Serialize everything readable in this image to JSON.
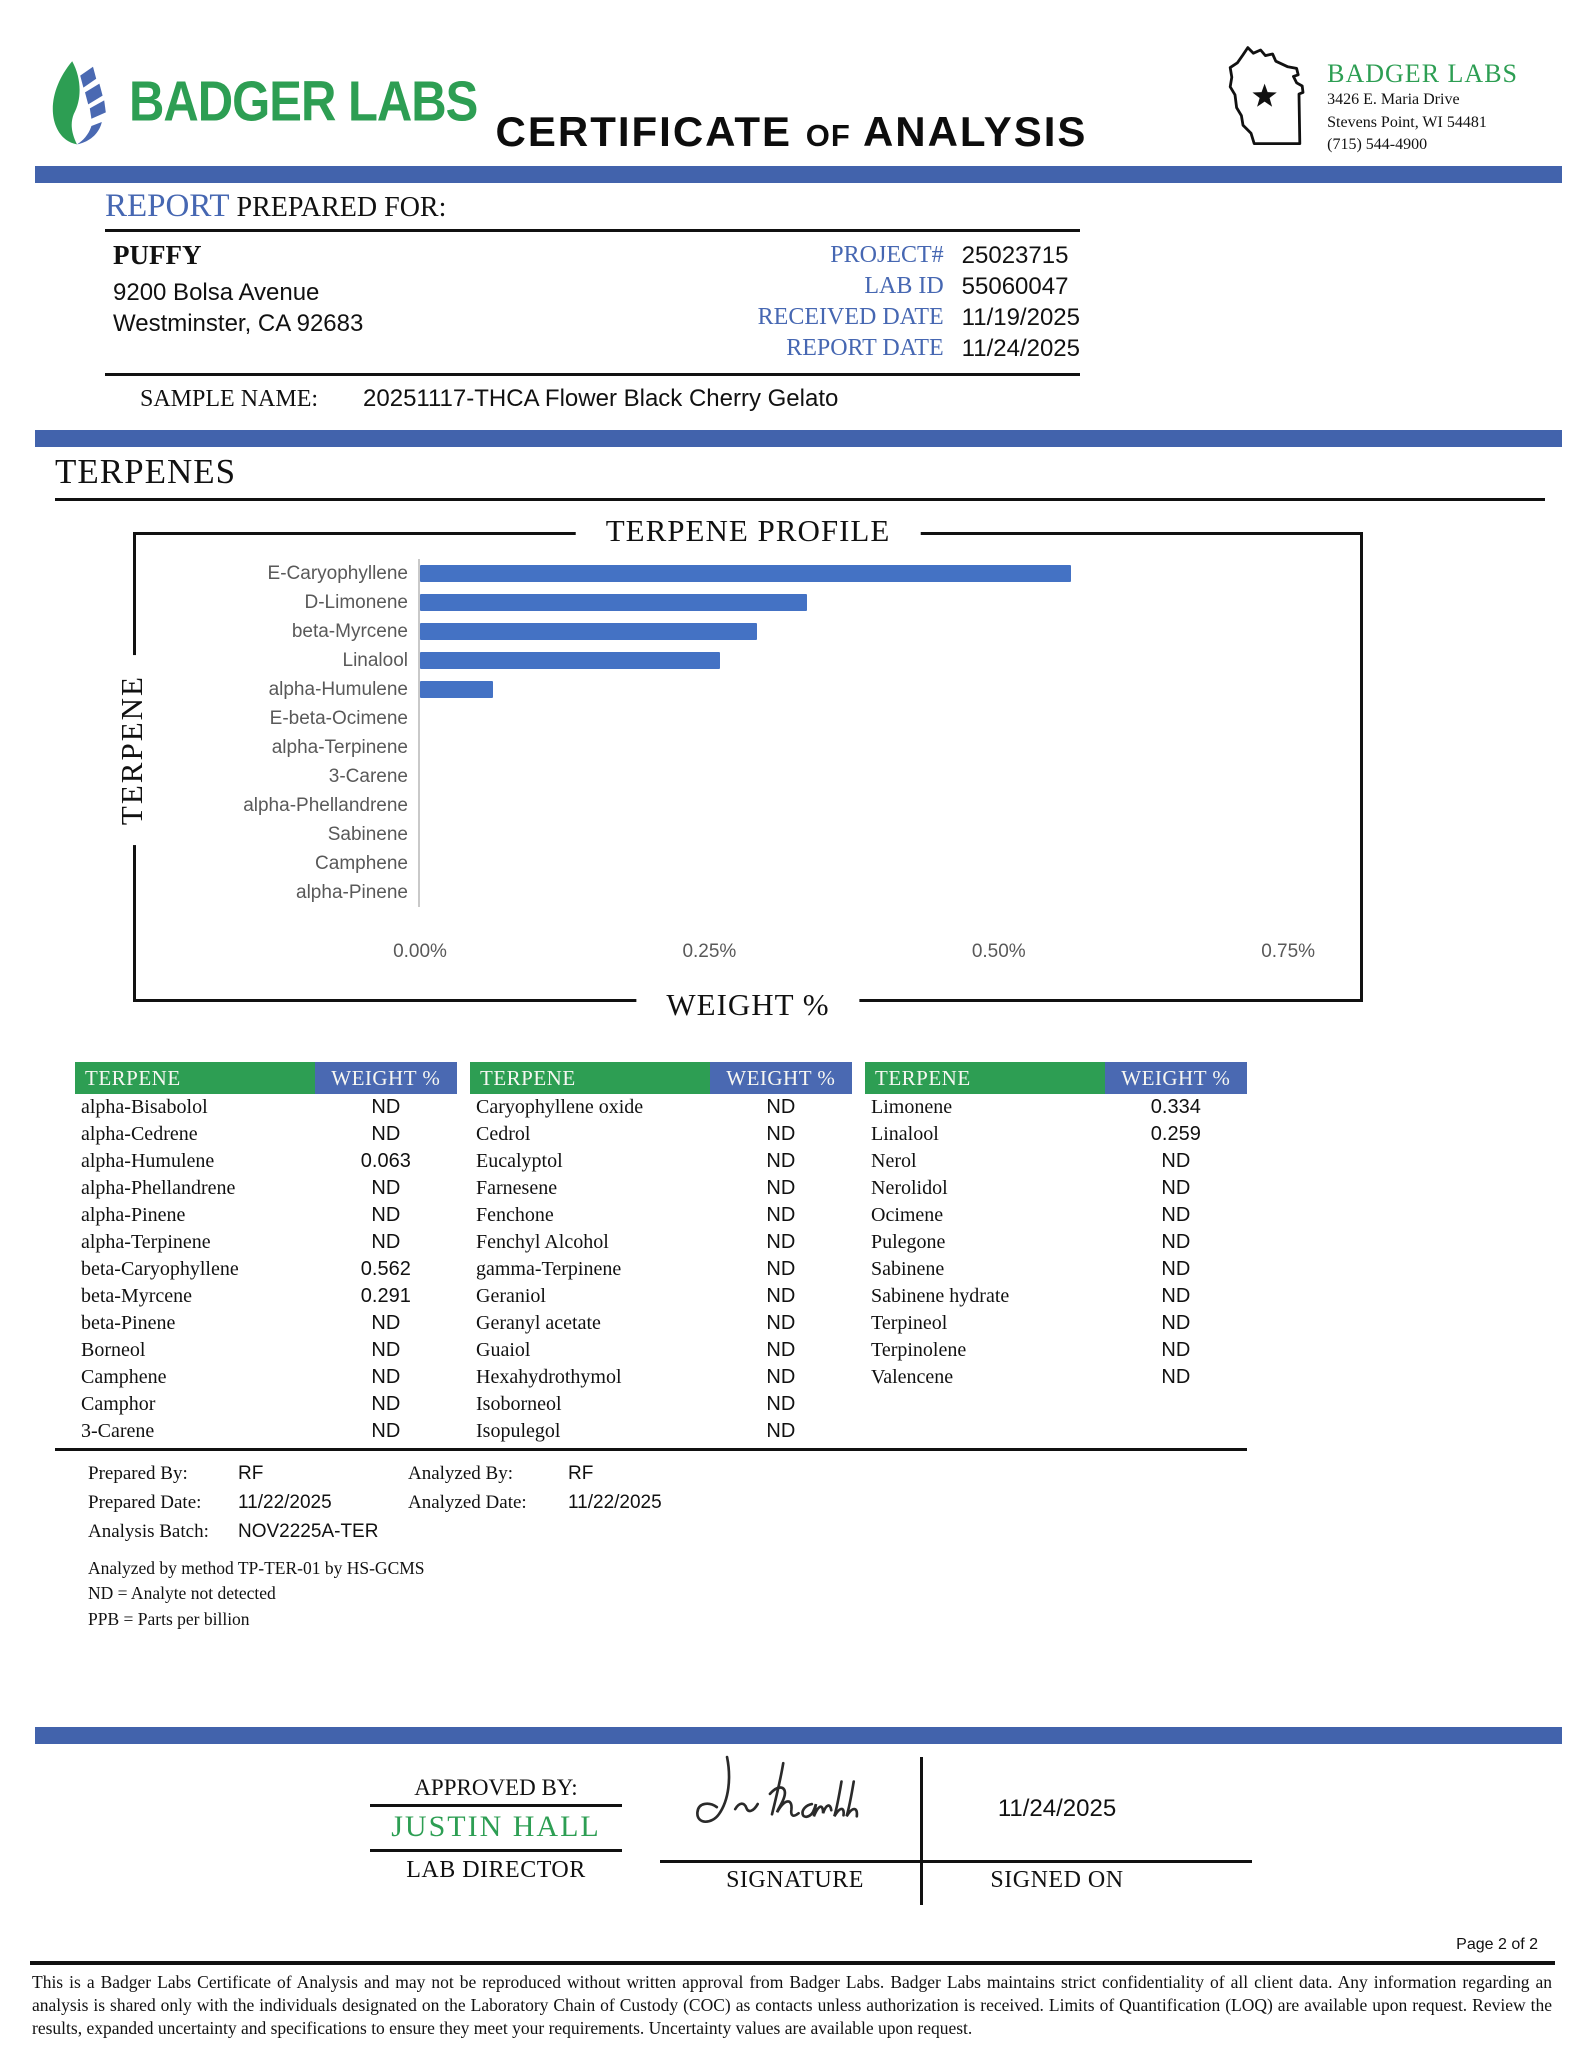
{
  "header": {
    "logo": {
      "text": "BADGER LABS"
    },
    "title": {
      "word1": "CERTIFICATE",
      "word2": "OF",
      "word3": "ANALYSIS"
    },
    "lab": {
      "name": "BADGER LABS",
      "address1": "3426 E. Maria Drive",
      "address2": "Stevens Point, WI 54481",
      "phone": "(715) 544-4900"
    }
  },
  "report": {
    "heading_accent": "REPORT",
    "heading_rest": "PREPARED FOR:",
    "client_name": "PUFFY",
    "client_address1": "9200 Bolsa Avenue",
    "client_address2": "Westminster, CA 92683",
    "fields": [
      {
        "label": "PROJECT#",
        "value": "25023715"
      },
      {
        "label": "LAB ID",
        "value": "55060047"
      },
      {
        "label": "RECEIVED DATE",
        "value": "11/19/2025"
      },
      {
        "label": "REPORT DATE",
        "value": "11/24/2025"
      }
    ],
    "sample_label": "SAMPLE NAME:",
    "sample_value": "20251117-THCA Flower Black Cherry Gelato"
  },
  "section": {
    "heading": "TERPENES"
  },
  "chart_data": {
    "type": "bar",
    "orientation": "horizontal",
    "title": "TERPENE PROFILE",
    "xlabel": "WEIGHT %",
    "ylabel": "TERPENE",
    "categories": [
      "E-Caryophyllene",
      "D-Limonene",
      "beta-Myrcene",
      "Linalool",
      "alpha-Humulene",
      "E-beta-Ocimene",
      "alpha-Terpinene",
      "3-Carene",
      "alpha-Phellandrene",
      "Sabinene",
      "Camphene",
      "alpha-Pinene"
    ],
    "values": [
      0.562,
      0.334,
      0.291,
      0.259,
      0.063,
      0,
      0,
      0,
      0,
      0,
      0,
      0
    ],
    "x_ticks": [
      {
        "label": "0.00%",
        "value": 0
      },
      {
        "label": "0.25%",
        "value": 0.25
      },
      {
        "label": "0.50%",
        "value": 0.5
      },
      {
        "label": "0.75%",
        "value": 0.75
      }
    ],
    "xlim": [
      0,
      0.8
    ],
    "grid": false,
    "legend": false,
    "bar_color": "#4472c4"
  },
  "table": {
    "column_headers": [
      "TERPENE",
      "WEIGHT %"
    ],
    "groups": [
      {
        "rows": [
          {
            "name": "alpha-Bisabolol",
            "value": "ND"
          },
          {
            "name": "alpha-Cedrene",
            "value": "ND"
          },
          {
            "name": "alpha-Humulene",
            "value": "0.063"
          },
          {
            "name": "alpha-Phellandrene",
            "value": "ND"
          },
          {
            "name": "alpha-Pinene",
            "value": "ND"
          },
          {
            "name": "alpha-Terpinene",
            "value": "ND"
          },
          {
            "name": "beta-Caryophyllene",
            "value": "0.562"
          },
          {
            "name": "beta-Myrcene",
            "value": "0.291"
          },
          {
            "name": "beta-Pinene",
            "value": "ND"
          },
          {
            "name": "Borneol",
            "value": "ND"
          },
          {
            "name": "Camphene",
            "value": "ND"
          },
          {
            "name": "Camphor",
            "value": "ND"
          },
          {
            "name": "3-Carene",
            "value": "ND"
          }
        ]
      },
      {
        "rows": [
          {
            "name": "Caryophyllene oxide",
            "value": "ND"
          },
          {
            "name": "Cedrol",
            "value": "ND"
          },
          {
            "name": "Eucalyptol",
            "value": "ND"
          },
          {
            "name": "Farnesene",
            "value": "ND"
          },
          {
            "name": "Fenchone",
            "value": "ND"
          },
          {
            "name": "Fenchyl Alcohol",
            "value": "ND"
          },
          {
            "name": "gamma-Terpinene",
            "value": "ND"
          },
          {
            "name": "Geraniol",
            "value": "ND"
          },
          {
            "name": "Geranyl acetate",
            "value": "ND"
          },
          {
            "name": "Guaiol",
            "value": "ND"
          },
          {
            "name": "Hexahydrothymol",
            "value": "ND"
          },
          {
            "name": "Isoborneol",
            "value": "ND"
          },
          {
            "name": "Isopulegol",
            "value": "ND"
          }
        ]
      },
      {
        "rows": [
          {
            "name": "Limonene",
            "value": "0.334"
          },
          {
            "name": "Linalool",
            "value": "0.259"
          },
          {
            "name": "Nerol",
            "value": "ND"
          },
          {
            "name": "Nerolidol",
            "value": "ND"
          },
          {
            "name": "Ocimene",
            "value": "ND"
          },
          {
            "name": "Pulegone",
            "value": "ND"
          },
          {
            "name": "Sabinene",
            "value": "ND"
          },
          {
            "name": "Sabinene hydrate",
            "value": "ND"
          },
          {
            "name": "Terpineol",
            "value": "ND"
          },
          {
            "name": "Terpinolene",
            "value": "ND"
          },
          {
            "name": "Valencene",
            "value": "ND"
          }
        ]
      }
    ]
  },
  "analysis": {
    "prepared_by_label": "Prepared By:",
    "prepared_by": "RF",
    "analyzed_by_label": "Analyzed By:",
    "analyzed_by": "RF",
    "prepared_date_label": "Prepared Date:",
    "prepared_date": "11/22/2025",
    "analyzed_date_label": "Analyzed Date:",
    "analyzed_date": "11/22/2025",
    "batch_label": "Analysis Batch:",
    "batch": "NOV2225A-TER",
    "method_note": "Analyzed by method TP-TER-01 by HS-GCMS",
    "nd_note": "ND = Analyte not detected",
    "ppb_note": "PPB = Parts per billion"
  },
  "approval": {
    "approved_by_label": "APPROVED BY:",
    "approver": "JUSTIN HALL",
    "approver_title": "LAB DIRECTOR",
    "signature_label": "SIGNATURE",
    "signed_on_label": "SIGNED ON",
    "signed_date": "11/24/2025"
  },
  "footer": {
    "page_label": "Page 2 of 2",
    "disclaimer": "This is a Badger Labs Certificate of Analysis and may not be reproduced without written approval from Badger Labs. Badger Labs maintains strict confidentiality of all client data. Any information regarding an analysis is shared only with the individuals designated on the Laboratory Chain of Custody (COC) as contacts unless authorization is received. Limits of Quantification (LOQ) are available upon request. Review the results, expanded uncertainty and specifications to ensure they meet your requirements. Uncertainty values are available upon request."
  },
  "colors": {
    "accent_blue": "#4263ac",
    "text_blue": "#4667b2",
    "green": "#2d9e53",
    "table_blue": "#4a69b2",
    "bar_blue": "#4472c4"
  }
}
